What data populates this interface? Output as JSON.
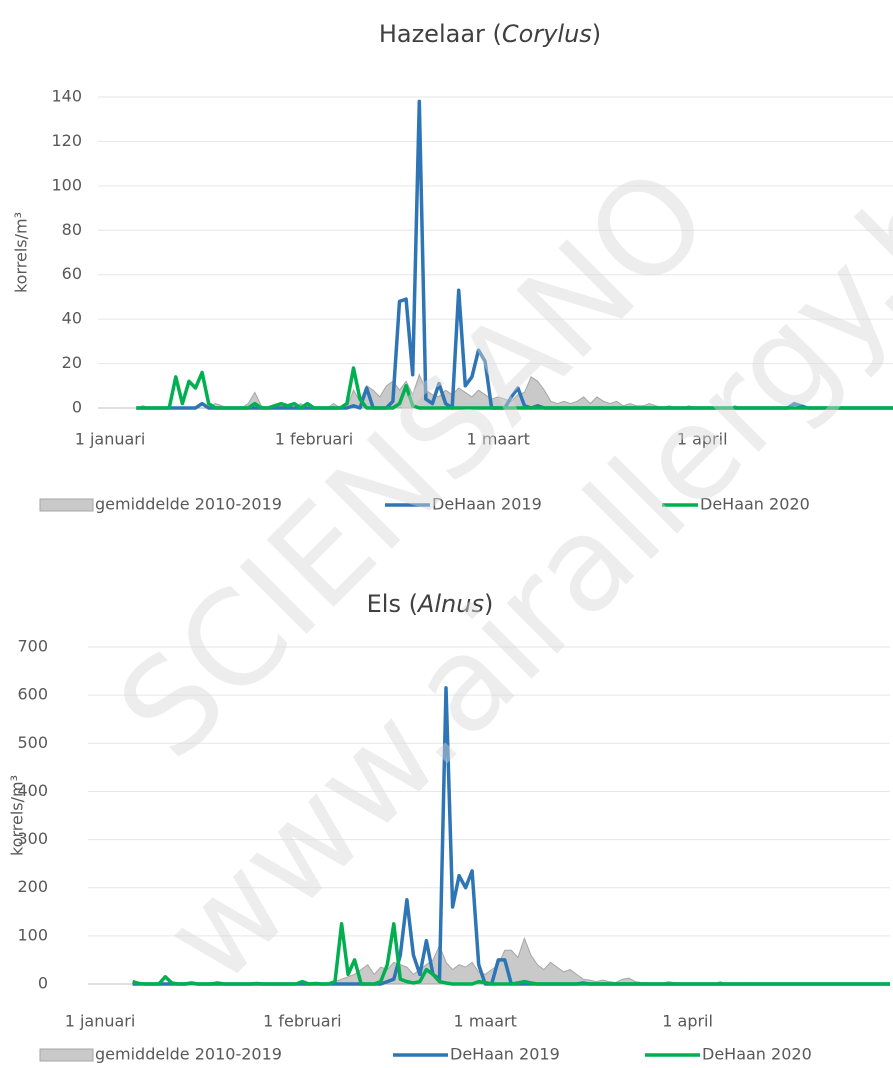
{
  "chart_data": [
    {
      "type": "line",
      "title": [
        "Hazelaar (",
        "Corylus",
        ")"
      ],
      "ylabel": "korrels/m³",
      "x": [
        1,
        2,
        3,
        4,
        5,
        6,
        7,
        8,
        9,
        10,
        11,
        12,
        13,
        14,
        15,
        16,
        17,
        18,
        19,
        20,
        21,
        22,
        23,
        24,
        25,
        26,
        27,
        28,
        29,
        30,
        31,
        32,
        33,
        34,
        35,
        36,
        37,
        38,
        39,
        40,
        41,
        42,
        43,
        44,
        45,
        46,
        47,
        48,
        49,
        50,
        51,
        52,
        53,
        54,
        55,
        56,
        57,
        58,
        59,
        60,
        61,
        62,
        63,
        64,
        65,
        66,
        67,
        68,
        69,
        70,
        71,
        72,
        73,
        74,
        75,
        76,
        77,
        78,
        79,
        80,
        81,
        82,
        83,
        84,
        85,
        86,
        87,
        88,
        89,
        90,
        91,
        92,
        93,
        94,
        95,
        96,
        97,
        98,
        99,
        100,
        101,
        102,
        103,
        104,
        105,
        106,
        107,
        108,
        109,
        110,
        111,
        112,
        113,
        114,
        115,
        116,
        117,
        118,
        119,
        120
      ],
      "xlim": [
        1,
        120
      ],
      "xticks": [
        {
          "value": 1,
          "label": "1 januari"
        },
        {
          "value": 32,
          "label": "1 februari"
        },
        {
          "value": 60,
          "label": "1 maart"
        },
        {
          "value": 91,
          "label": "1 april"
        }
      ],
      "ylim": [
        0,
        140
      ],
      "yticks": [
        0,
        20,
        40,
        60,
        80,
        100,
        120,
        140
      ],
      "grid": true,
      "series": [
        {
          "name": "gemiddelde 2010-2019",
          "style": "area",
          "color": "#c9c9c9",
          "values": [
            null,
            null,
            null,
            null,
            0,
            1,
            0,
            0,
            0,
            0,
            0,
            0,
            0,
            0,
            0,
            0,
            2,
            1,
            0,
            0,
            0,
            2,
            7,
            1,
            0,
            0,
            1,
            0,
            0,
            2,
            0,
            0,
            0,
            0,
            2,
            0,
            0,
            8,
            3,
            10,
            8,
            5,
            10,
            12,
            8,
            12,
            6,
            15,
            8,
            6,
            5,
            8,
            6,
            9,
            7,
            5,
            8,
            6,
            4,
            5,
            4,
            3,
            6,
            7,
            14,
            12,
            8,
            3,
            2,
            3,
            2,
            3,
            5,
            2,
            5,
            3,
            2,
            3,
            1,
            2,
            1,
            1,
            2,
            1,
            0,
            1,
            0,
            0,
            1,
            0,
            0,
            0,
            0,
            0,
            0,
            1,
            0,
            0,
            0,
            0,
            0,
            0,
            0,
            0,
            0,
            0,
            0,
            0,
            0,
            0,
            0,
            0,
            0,
            0,
            0,
            0,
            0,
            0,
            0,
            0
          ]
        },
        {
          "name": "DeHaan 2019",
          "style": "line",
          "color": "#2e75b6",
          "values": [
            null,
            null,
            null,
            null,
            0,
            0,
            0,
            0,
            0,
            0,
            0,
            0,
            0,
            0,
            2,
            0,
            0,
            0,
            0,
            0,
            0,
            0,
            0,
            0,
            0,
            0,
            0,
            0,
            0,
            0,
            0,
            0,
            0,
            0,
            0,
            0,
            0,
            1,
            0,
            9,
            0,
            0,
            0,
            3,
            48,
            49,
            15,
            138,
            4,
            2,
            11,
            2,
            0,
            53,
            10,
            14,
            26,
            21,
            0,
            0,
            0,
            5,
            9,
            1,
            0,
            1,
            0,
            0,
            0,
            0,
            0,
            0,
            0,
            0,
            0,
            0,
            0,
            0,
            0,
            0,
            0,
            0,
            0,
            0,
            0,
            0,
            0,
            0,
            0,
            0,
            0,
            0,
            0,
            0,
            0,
            0,
            0,
            0,
            0,
            0,
            0,
            0,
            0,
            0,
            2,
            1,
            0,
            0,
            0,
            0,
            0,
            0,
            0,
            0,
            0,
            0,
            0,
            0,
            0,
            0
          ]
        },
        {
          "name": "DeHaan 2020",
          "style": "line",
          "color": "#00b050",
          "values": [
            null,
            null,
            null,
            null,
            0,
            0,
            0,
            0,
            0,
            0,
            14,
            2,
            12,
            9,
            16,
            2,
            0,
            0,
            0,
            0,
            0,
            0,
            2,
            0,
            0,
            1,
            2,
            1,
            2,
            0,
            2,
            0,
            0,
            0,
            0,
            0,
            2,
            18,
            4,
            0,
            0,
            0,
            0,
            0,
            2,
            10,
            1,
            0,
            0,
            0,
            0,
            0,
            0,
            0,
            0,
            0,
            0,
            0,
            0,
            0,
            0,
            0,
            0,
            0,
            0,
            0,
            0,
            0,
            0,
            0,
            0,
            0,
            0,
            0,
            0,
            0,
            0,
            0,
            0,
            0,
            0,
            0,
            0,
            0,
            0,
            0,
            0,
            0,
            0,
            0,
            0,
            0,
            0,
            0,
            0,
            0,
            0,
            0,
            0,
            0,
            0,
            0,
            0,
            0,
            0,
            0,
            0,
            0,
            0,
            0,
            0,
            0,
            0,
            0,
            0,
            0,
            0,
            0,
            0,
            0
          ]
        }
      ]
    },
    {
      "type": "line",
      "title": [
        "Els (",
        "Alnus",
        ")"
      ],
      "ylabel": "korrels/m³",
      "x": [
        1,
        2,
        3,
        4,
        5,
        6,
        7,
        8,
        9,
        10,
        11,
        12,
        13,
        14,
        15,
        16,
        17,
        18,
        19,
        20,
        21,
        22,
        23,
        24,
        25,
        26,
        27,
        28,
        29,
        30,
        31,
        32,
        33,
        34,
        35,
        36,
        37,
        38,
        39,
        40,
        41,
        42,
        43,
        44,
        45,
        46,
        47,
        48,
        49,
        50,
        51,
        52,
        53,
        54,
        55,
        56,
        57,
        58,
        59,
        60,
        61,
        62,
        63,
        64,
        65,
        66,
        67,
        68,
        69,
        70,
        71,
        72,
        73,
        74,
        75,
        76,
        77,
        78,
        79,
        80,
        81,
        82,
        83,
        84,
        85,
        86,
        87,
        88,
        89,
        90,
        91,
        92,
        93,
        94,
        95,
        96,
        97,
        98,
        99,
        100,
        101,
        102,
        103,
        104,
        105,
        106,
        107,
        108,
        109,
        110,
        111,
        112,
        113,
        114,
        115,
        116,
        117,
        118,
        119,
        120,
        121,
        122
      ],
      "xlim": [
        1,
        122
      ],
      "xticks": [
        {
          "value": 1,
          "label": "1 januari"
        },
        {
          "value": 32,
          "label": "1 februari"
        },
        {
          "value": 60,
          "label": "1 maart"
        },
        {
          "value": 91,
          "label": "1 april"
        }
      ],
      "ylim": [
        0,
        700
      ],
      "yticks": [
        0,
        100,
        200,
        300,
        400,
        500,
        600,
        700
      ],
      "grid": true,
      "series": [
        {
          "name": "gemiddelde 2010-2019",
          "style": "area",
          "color": "#c9c9c9",
          "values": [
            null,
            null,
            null,
            null,
            null,
            0,
            0,
            0,
            0,
            0,
            0,
            0,
            0,
            0,
            0,
            0,
            0,
            0,
            0,
            2,
            0,
            0,
            0,
            0,
            0,
            0,
            0,
            0,
            0,
            0,
            0,
            0,
            0,
            0,
            0,
            0,
            5,
            10,
            15,
            20,
            30,
            40,
            20,
            35,
            30,
            45,
            40,
            35,
            20,
            30,
            40,
            50,
            80,
            45,
            30,
            40,
            35,
            45,
            25,
            20,
            30,
            40,
            70,
            70,
            55,
            95,
            60,
            40,
            30,
            45,
            35,
            25,
            30,
            20,
            10,
            8,
            5,
            8,
            5,
            3,
            10,
            12,
            5,
            3,
            2,
            0,
            0,
            5,
            3,
            0,
            0,
            0,
            0,
            0,
            0,
            5,
            0,
            0,
            0,
            3,
            0,
            0,
            0,
            0,
            0,
            0,
            0,
            0,
            0,
            0,
            0,
            0,
            0,
            0,
            0,
            0,
            0,
            0,
            0,
            0,
            0,
            0
          ]
        },
        {
          "name": "DeHaan 2019",
          "style": "line",
          "color": "#2e75b6",
          "values": [
            null,
            null,
            null,
            null,
            null,
            0,
            0,
            0,
            0,
            0,
            0,
            0,
            0,
            0,
            2,
            0,
            0,
            0,
            0,
            0,
            0,
            0,
            0,
            0,
            0,
            0,
            0,
            0,
            0,
            0,
            0,
            0,
            0,
            0,
            0,
            0,
            0,
            0,
            0,
            0,
            0,
            0,
            0,
            0,
            5,
            10,
            60,
            175,
            60,
            20,
            90,
            20,
            10,
            615,
            160,
            225,
            200,
            235,
            40,
            0,
            0,
            50,
            50,
            0,
            0,
            0,
            0,
            0,
            0,
            0,
            0,
            0,
            0,
            0,
            2,
            0,
            0,
            0,
            0,
            0,
            0,
            0,
            0,
            0,
            0,
            0,
            0,
            0,
            0,
            0,
            0,
            0,
            0,
            0,
            0,
            0,
            0,
            0,
            0,
            0,
            0,
            0,
            0,
            0,
            0,
            0,
            0,
            0,
            0,
            0,
            0,
            0,
            0,
            0,
            0,
            0,
            0,
            0,
            0,
            0,
            0,
            0
          ]
        },
        {
          "name": "DeHaan 2020",
          "style": "line",
          "color": "#00b050",
          "values": [
            null,
            null,
            null,
            null,
            null,
            5,
            1,
            0,
            0,
            0,
            15,
            2,
            0,
            0,
            1,
            0,
            0,
            0,
            2,
            0,
            0,
            0,
            0,
            0,
            1,
            0,
            0,
            0,
            0,
            0,
            0,
            5,
            0,
            1,
            0,
            0,
            5,
            125,
            20,
            50,
            0,
            0,
            0,
            5,
            40,
            125,
            10,
            5,
            2,
            5,
            30,
            20,
            5,
            2,
            0,
            0,
            0,
            0,
            5,
            3,
            0,
            0,
            0,
            0,
            2,
            5,
            2,
            0,
            0,
            0,
            0,
            0,
            0,
            0,
            0,
            0,
            0,
            0,
            0,
            0,
            0,
            0,
            0,
            0,
            0,
            0,
            0,
            0,
            0,
            0,
            0,
            0,
            0,
            0,
            0,
            0,
            0,
            0,
            0,
            0,
            0,
            0,
            0,
            0,
            0,
            0,
            0,
            0,
            0,
            0,
            0,
            0,
            0,
            0,
            0,
            0,
            0,
            0,
            0,
            0,
            0,
            0
          ]
        }
      ]
    }
  ],
  "watermark": [
    "SCIENSANO",
    "www.airallergy.be"
  ]
}
